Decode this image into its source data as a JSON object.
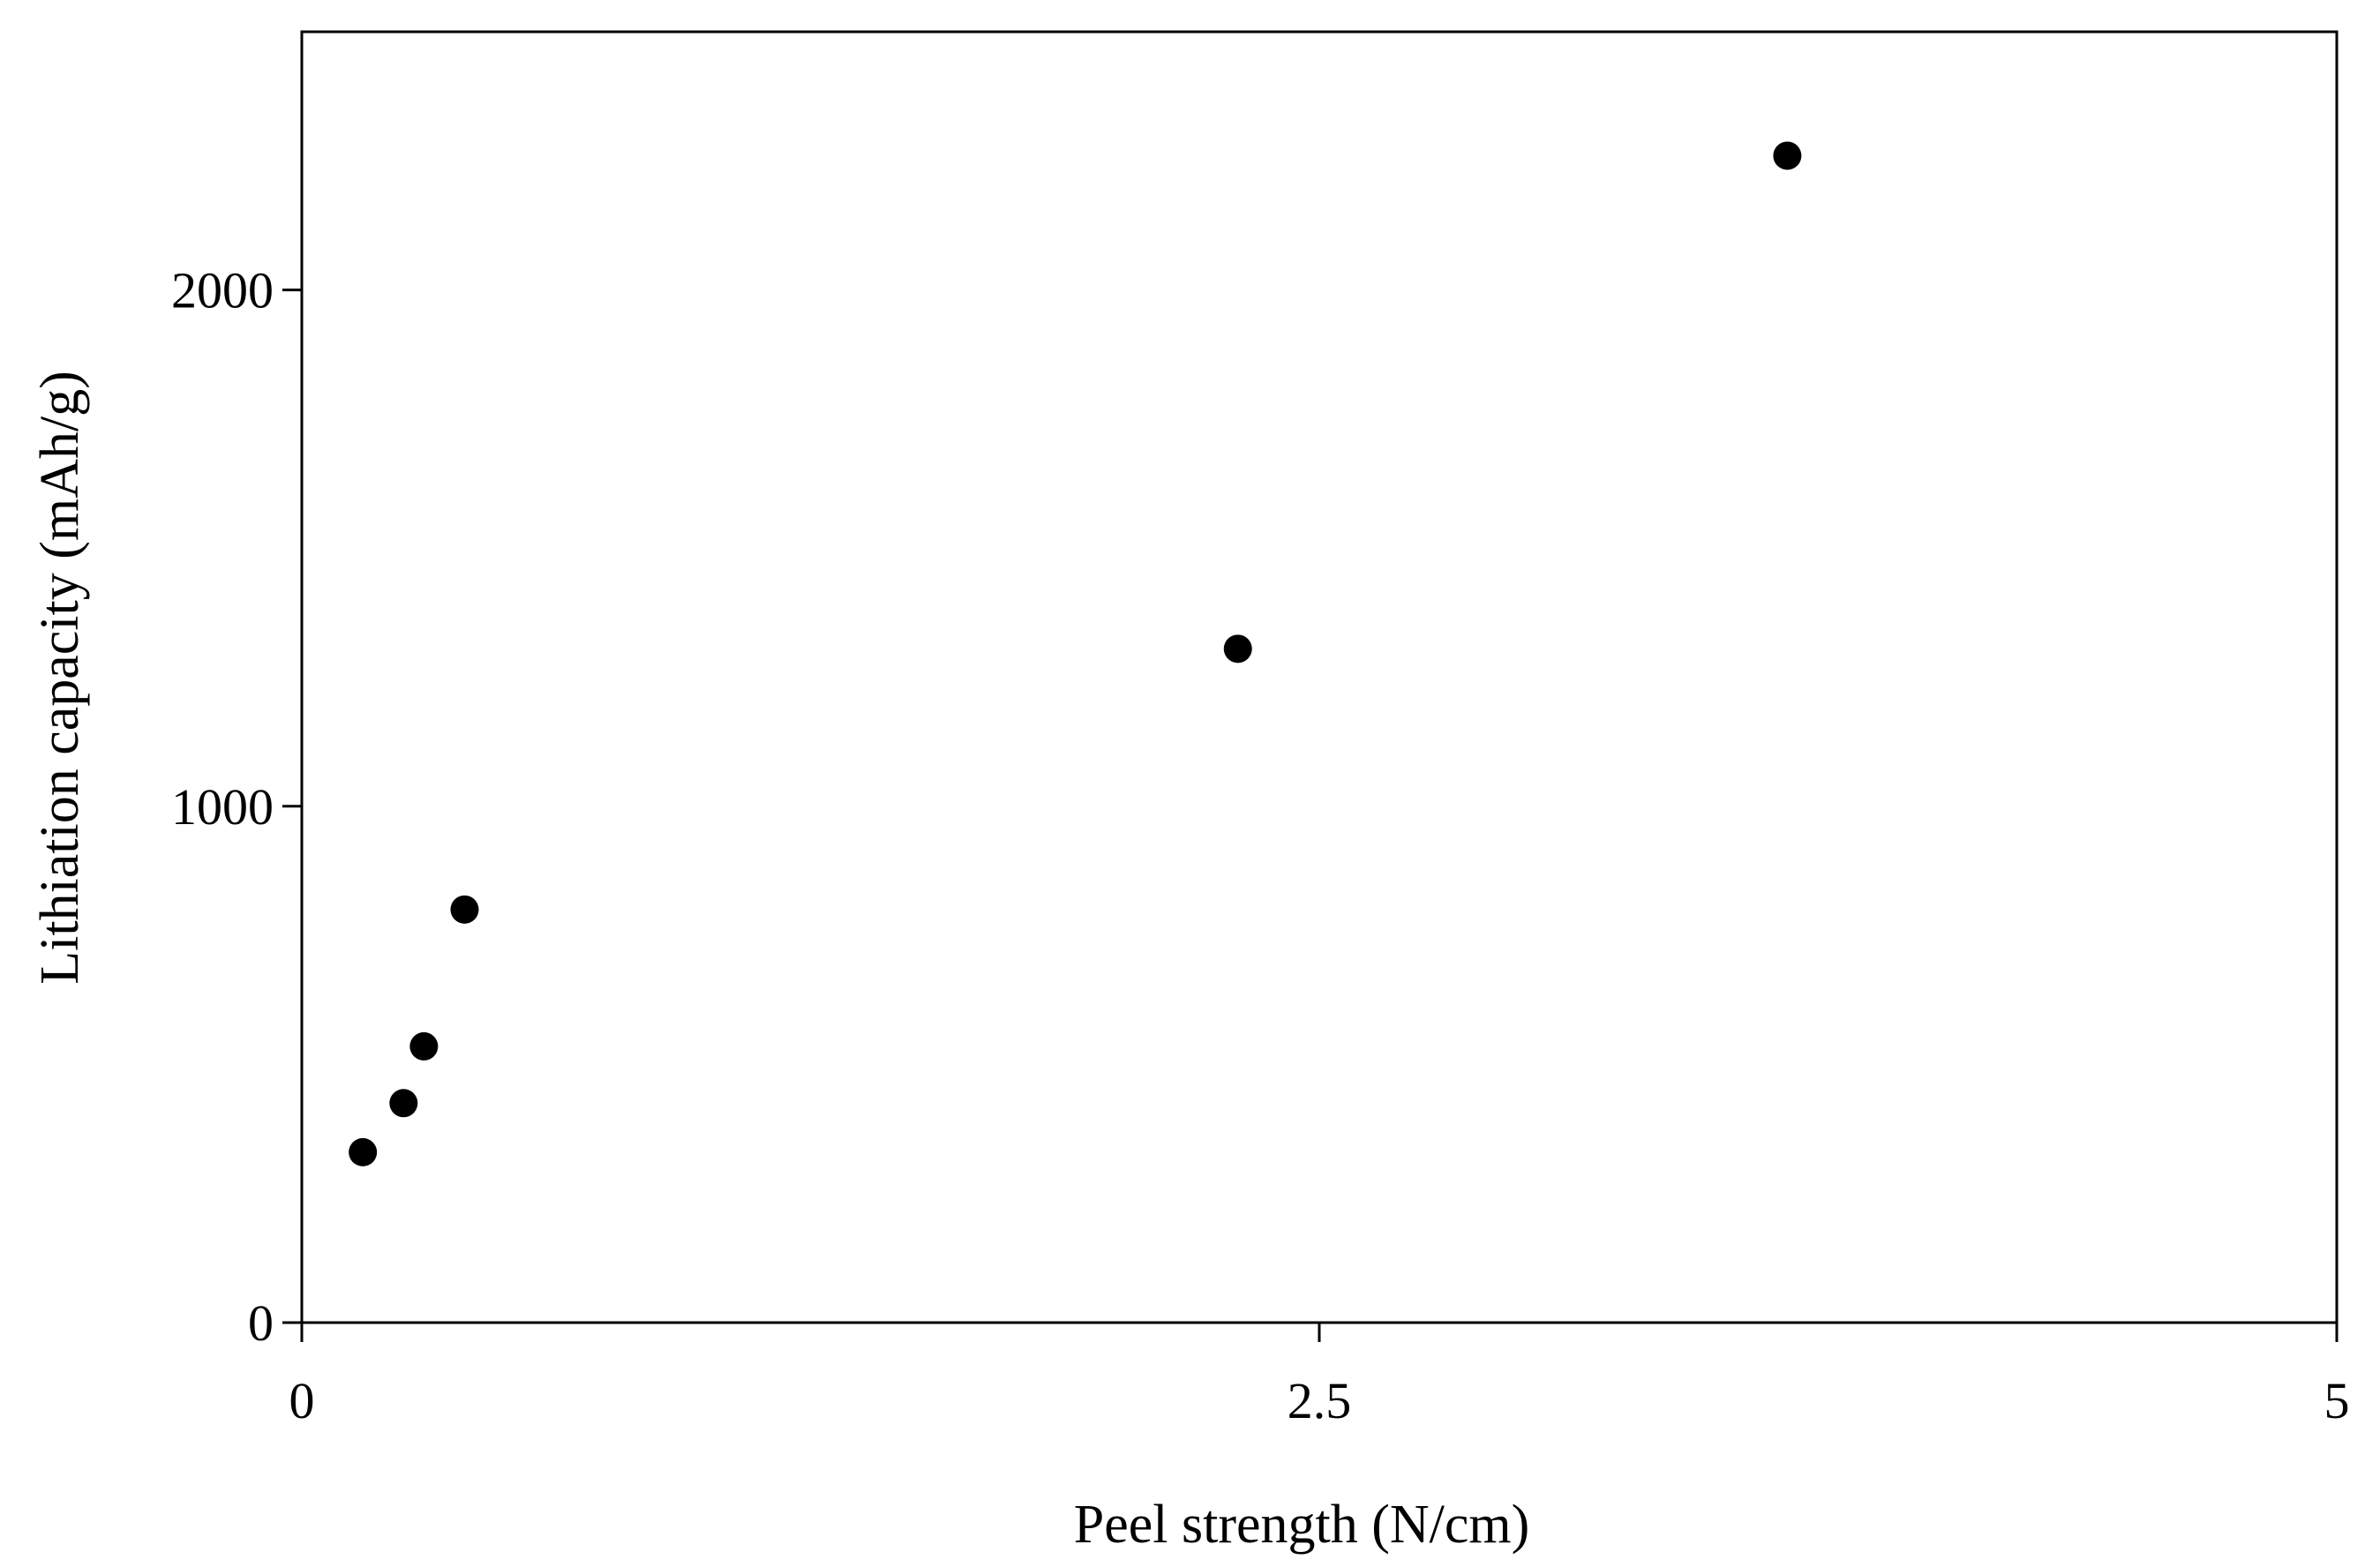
{
  "chart_data": {
    "type": "scatter",
    "title": "",
    "xlabel": "Peel strength  (N/cm)",
    "ylabel": "Lithiation capacity (mAh/g)",
    "xlim": [
      0,
      5
    ],
    "ylim": [
      0,
      2500
    ],
    "x_ticks": [
      0,
      2.5,
      5
    ],
    "x_tick_labels": [
      "0",
      "2.5",
      "5"
    ],
    "y_ticks": [
      0,
      1000,
      2000
    ],
    "y_tick_labels": [
      "0",
      "1000",
      "2000"
    ],
    "grid": false,
    "legend": "none",
    "series": [
      {
        "marker_color": "#000000",
        "points": [
          {
            "x": 0.15,
            "y": 330
          },
          {
            "x": 0.25,
            "y": 425
          },
          {
            "x": 0.3,
            "y": 535
          },
          {
            "x": 0.4,
            "y": 800
          },
          {
            "x": 2.3,
            "y": 1305
          },
          {
            "x": 3.65,
            "y": 2260
          }
        ]
      }
    ]
  }
}
